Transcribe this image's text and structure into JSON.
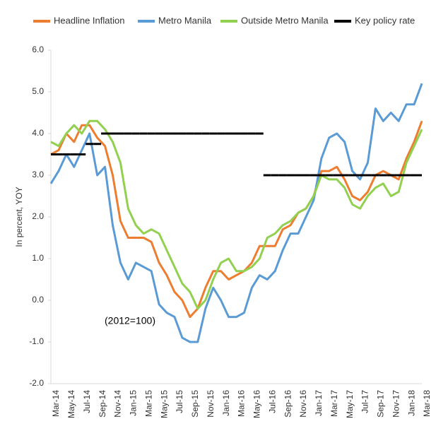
{
  "chart_data": {
    "type": "line",
    "y_label": "In percent, YOY",
    "annotation": "(2012=100)",
    "categories": [
      "Mar-14",
      null,
      "May-14",
      null,
      "Jul-14",
      null,
      "Sep-14",
      null,
      "Nov-14",
      null,
      "Jan-15",
      null,
      "Mar-15",
      null,
      "May-15",
      null,
      "Jul-15",
      null,
      "Sep-15",
      null,
      "Nov-15",
      null,
      "Jan-16",
      null,
      "Mar-16",
      null,
      "May-16",
      null,
      "Jul-16",
      null,
      "Sep-16",
      null,
      "Nov-16",
      null,
      "Jan-17",
      null,
      "Mar-17",
      null,
      "May-17",
      null,
      "Jul-17",
      null,
      "Sep-17",
      null,
      "Nov-17",
      null,
      "Jan-18",
      null,
      "Mar-18"
    ],
    "series": [
      {
        "name": "Headline Inflation",
        "color": "#ed7d31",
        "values": [
          3.5,
          3.6,
          4.0,
          3.8,
          4.2,
          4.2,
          3.9,
          3.7,
          3.0,
          1.9,
          1.5,
          1.5,
          1.5,
          1.4,
          0.9,
          0.6,
          0.2,
          0.0,
          -0.4,
          -0.2,
          0.3,
          0.7,
          0.7,
          0.5,
          0.6,
          0.7,
          0.9,
          1.3,
          1.3,
          1.3,
          1.7,
          1.8,
          2.1,
          2.2,
          2.5,
          3.1,
          3.1,
          3.2,
          2.9,
          2.5,
          2.4,
          2.6,
          3.0,
          3.1,
          3.0,
          2.9,
          3.4,
          3.8,
          4.3
        ]
      },
      {
        "name": "Metro Manila",
        "color": "#5b9bd5",
        "values": [
          2.8,
          3.1,
          3.5,
          3.2,
          3.6,
          4.0,
          3.0,
          3.2,
          1.8,
          0.9,
          0.5,
          0.9,
          0.8,
          0.7,
          -0.1,
          -0.3,
          -0.4,
          -0.9,
          -1.0,
          -1.0,
          -0.2,
          0.3,
          0.0,
          -0.4,
          -0.4,
          -0.3,
          0.3,
          0.6,
          0.5,
          0.7,
          1.2,
          1.6,
          1.6,
          2.0,
          2.4,
          3.4,
          3.9,
          4.0,
          3.8,
          3.1,
          2.9,
          3.3,
          4.6,
          4.3,
          4.5,
          4.3,
          4.7,
          4.7,
          5.2
        ]
      },
      {
        "name": "Outside Metro Manila",
        "color": "#92d050",
        "values": [
          3.8,
          3.7,
          4.0,
          4.2,
          4.0,
          4.3,
          4.3,
          4.1,
          3.8,
          3.3,
          2.2,
          1.8,
          1.6,
          1.7,
          1.6,
          1.2,
          0.8,
          0.4,
          0.2,
          -0.2,
          0.0,
          0.5,
          0.9,
          1.0,
          0.7,
          0.7,
          0.8,
          1.0,
          1.5,
          1.6,
          1.8,
          1.9,
          2.1,
          2.2,
          2.5,
          3.0,
          2.9,
          2.9,
          2.7,
          2.3,
          2.2,
          2.5,
          2.7,
          2.8,
          2.5,
          2.6,
          3.3,
          3.7,
          4.1
        ]
      },
      {
        "name": "Key policy rate",
        "color": "#000000",
        "style": "step",
        "values": [
          3.5,
          3.5,
          3.5,
          3.5,
          3.5,
          3.75,
          3.75,
          4.0,
          4.0,
          4.0,
          4.0,
          4.0,
          4.0,
          4.0,
          4.0,
          4.0,
          4.0,
          4.0,
          4.0,
          4.0,
          4.0,
          4.0,
          4.0,
          4.0,
          4.0,
          4.0,
          4.0,
          4.0,
          3.0,
          3.0,
          3.0,
          3.0,
          3.0,
          3.0,
          3.0,
          3.0,
          3.0,
          3.0,
          3.0,
          3.0,
          3.0,
          3.0,
          3.0,
          3.0,
          3.0,
          3.0,
          3.0,
          3.0,
          3.0
        ]
      }
    ],
    "ylim": [
      -2.0,
      6.0
    ],
    "yticks": [
      {
        "value": -2.0,
        "label": "-2.0"
      },
      {
        "value": -1.0,
        "label": "-1.0"
      },
      {
        "value": 0.0,
        "label": "0.0"
      },
      {
        "value": 1.0,
        "label": "1.0"
      },
      {
        "value": 2.0,
        "label": "2.0"
      },
      {
        "value": 3.0,
        "label": "3.0"
      },
      {
        "value": 4.0,
        "label": "4.0"
      },
      {
        "value": 5.0,
        "label": "5.0"
      },
      {
        "value": 6.0,
        "label": "6.0"
      }
    ],
    "grid": false,
    "legend": "top"
  }
}
